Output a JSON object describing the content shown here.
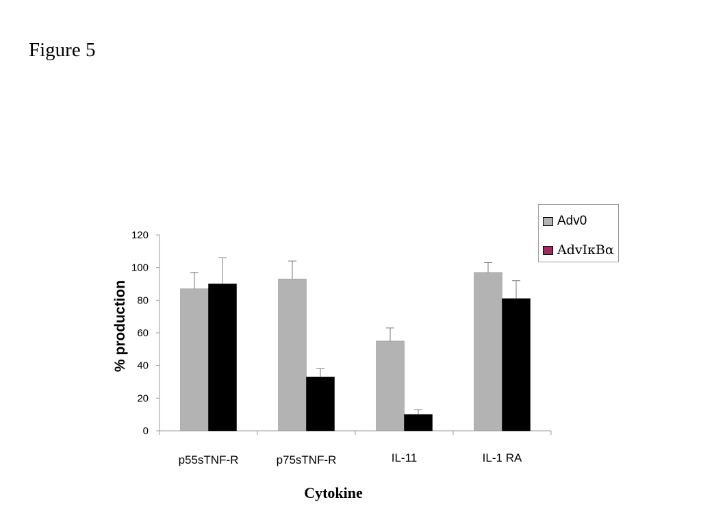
{
  "figure_label": "Figure 5",
  "colors": {
    "adv0": "#b3b3b3",
    "advikba": "#000000",
    "legend_advikba_swatch": "#9e2a5e",
    "axis": "#9a9a9a"
  },
  "chart_data": {
    "type": "bar",
    "title": "",
    "xlabel": "Cytokine",
    "ylabel": "% production",
    "ylim": [
      0,
      120
    ],
    "yticks": [
      0,
      20,
      40,
      60,
      80,
      100,
      120
    ],
    "categories": [
      "p55sTNF-R",
      "p75sTNF-R",
      "IL-11",
      "IL-1 RA"
    ],
    "series": [
      {
        "name": "Adv0",
        "values": [
          87,
          93,
          55,
          97
        ],
        "errors": [
          10,
          11,
          8,
          6
        ]
      },
      {
        "name": "AdvIκBα",
        "values": [
          90,
          33,
          10,
          81
        ],
        "errors": [
          16,
          5,
          3,
          11
        ]
      }
    ],
    "grid": false,
    "legend": "top-right"
  }
}
